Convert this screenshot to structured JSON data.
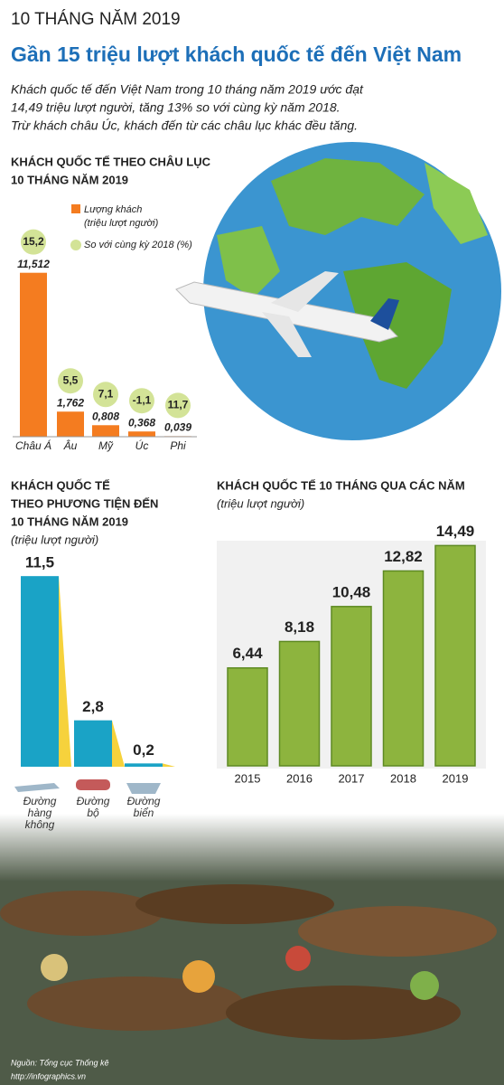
{
  "header": {
    "kicker": "10 THÁNG NĂM 2019",
    "title": "Gần 15 triệu lượt khách quốc tế đến Việt Nam",
    "lead": [
      "Khách quốc tế đến Việt Nam trong 10 tháng năm 2019 ước đạt",
      "14,49 triệu lượt người, tăng 13% so với cùng kỳ năm 2018.",
      "Trừ khách châu Úc, khách đến từ các châu lục khác đều tăng."
    ]
  },
  "chart_data": [
    {
      "type": "bar",
      "title": [
        "KHÁCH QUỐC TẾ THEO CHÂU LỤC",
        "10 THÁNG NĂM 2019"
      ],
      "categories": [
        "Châu Á",
        "Âu",
        "Mỹ",
        "Úc",
        "Phi"
      ],
      "series": [
        {
          "name": "Lượng khách",
          "unit": "(triệu lượt người)",
          "color": "#f47c20",
          "values": [
            11.512,
            1.762,
            0.808,
            0.368,
            0.039
          ],
          "value_labels": [
            "11,512",
            "1,762",
            "0,808",
            "0,368",
            "0,039"
          ]
        },
        {
          "name": "So với cùng kỳ 2018 (%)",
          "color": "#d3e397",
          "values": [
            15.2,
            5.5,
            7.1,
            -1.1,
            11.7
          ],
          "value_labels": [
            "15,2",
            "5,5",
            "7,1",
            "-1,1",
            "11,7"
          ]
        }
      ],
      "ylim": [
        0,
        12
      ]
    },
    {
      "type": "bar",
      "title": [
        "KHÁCH QUỐC TẾ",
        "THEO PHƯƠNG TIỆN ĐẾN",
        "10 THÁNG NĂM 2019"
      ],
      "subtitle": "(triệu lượt người)",
      "categories": [
        "Đường hàng không",
        "Đường bộ",
        "Đường biển"
      ],
      "values": [
        11.5,
        2.8,
        0.2
      ],
      "value_labels": [
        "11,5",
        "2,8",
        "0,2"
      ],
      "color": "#1aa3c6",
      "ylim": [
        0,
        12
      ]
    },
    {
      "type": "bar",
      "title": [
        "KHÁCH QUỐC TẾ 10 THÁNG QUA CÁC NĂM"
      ],
      "subtitle": "(triệu lượt người)",
      "categories": [
        "2015",
        "2016",
        "2017",
        "2018",
        "2019"
      ],
      "values": [
        6.44,
        8.18,
        10.48,
        12.82,
        14.49
      ],
      "value_labels": [
        "6,44",
        "8,18",
        "10,48",
        "12,82",
        "14,49"
      ],
      "color": "#8db43e",
      "ylim": [
        0,
        16
      ]
    }
  ],
  "footer": {
    "source": "Nguồn: Tổng cục Thống kê",
    "site": "http://infographics.vn"
  }
}
